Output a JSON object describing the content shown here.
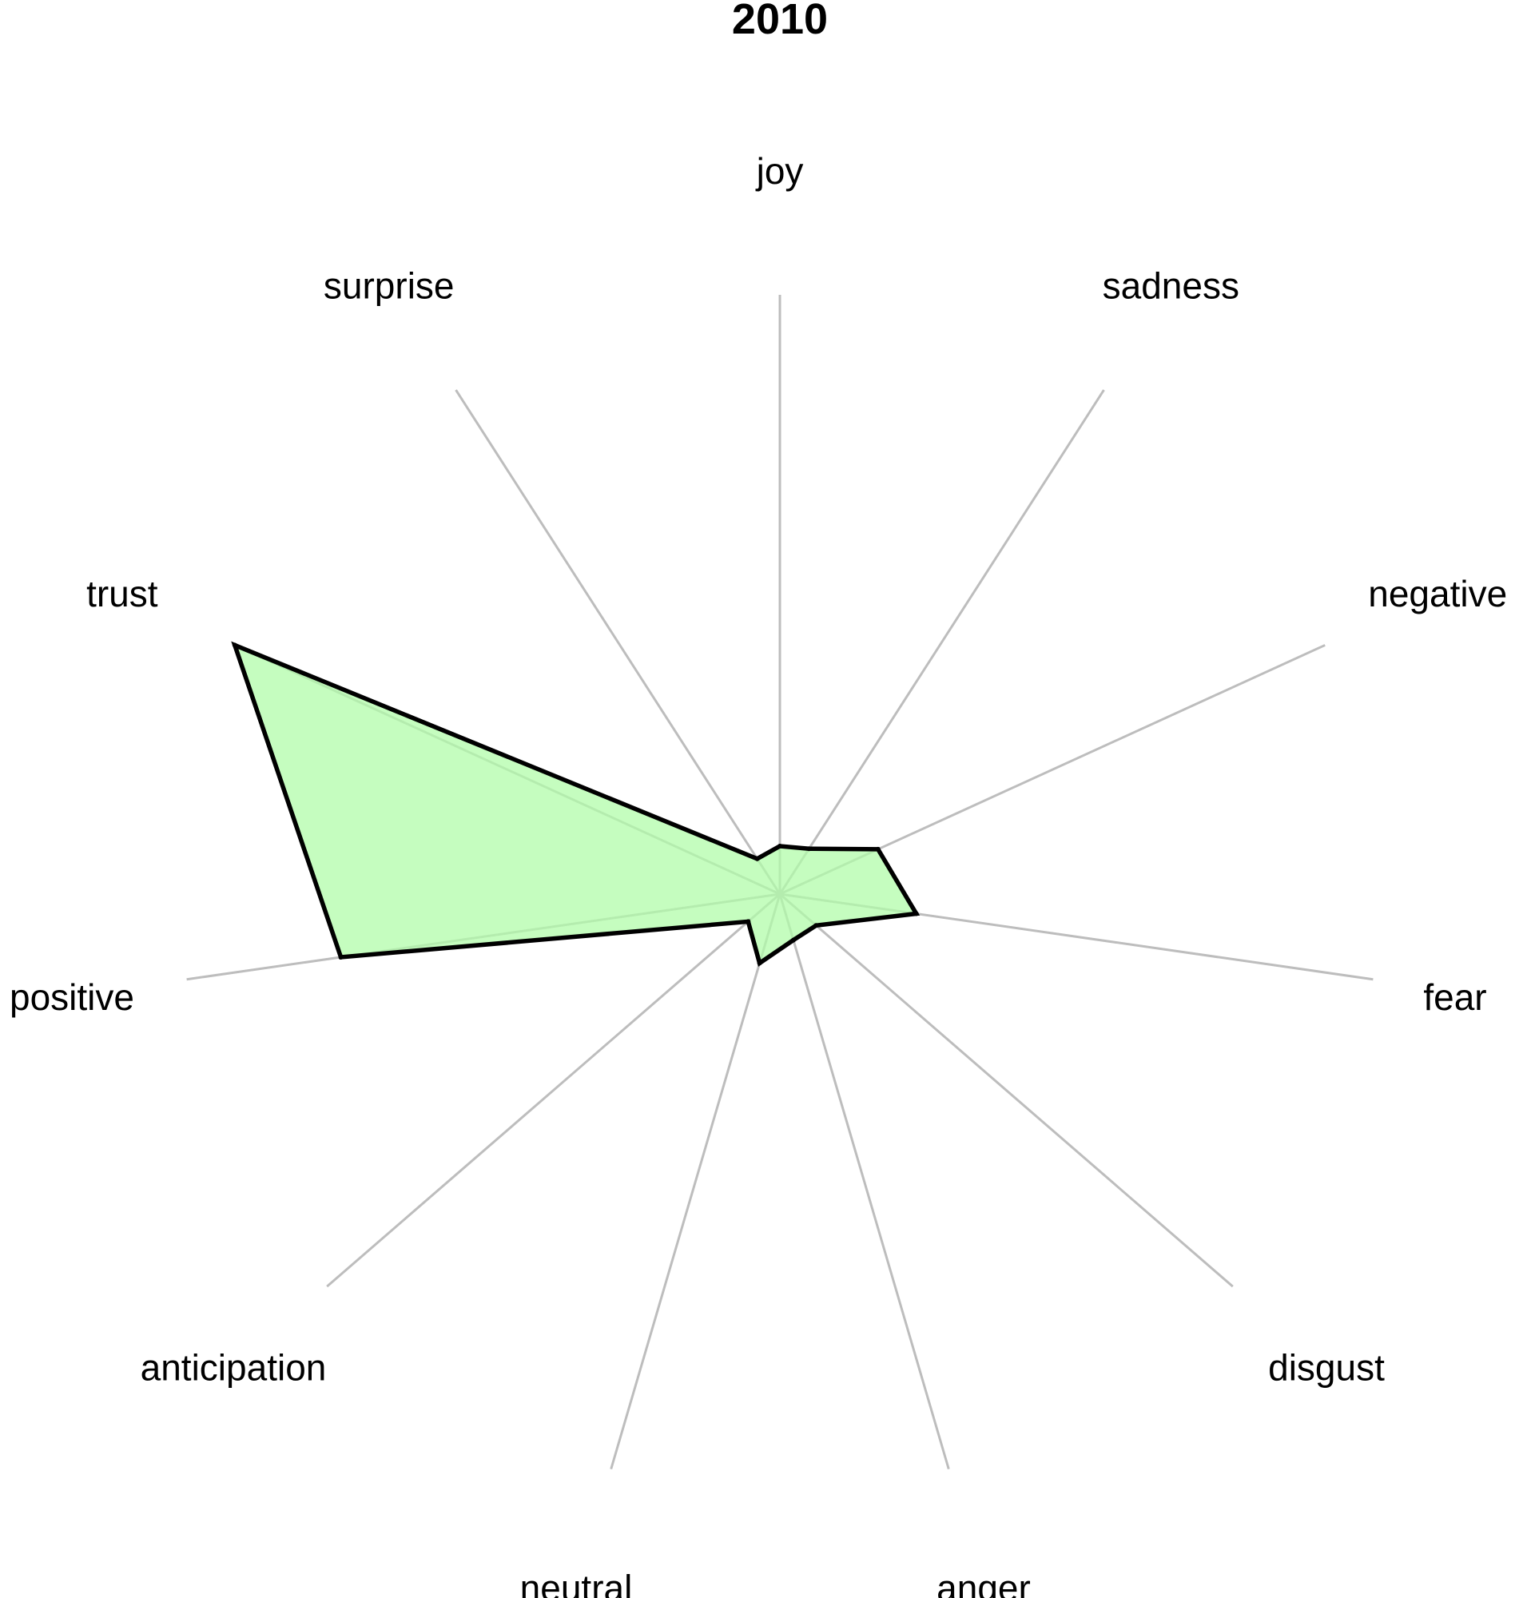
{
  "chart_data": {
    "type": "radar",
    "title": "2010",
    "categories": [
      "joy",
      "sadness",
      "negative",
      "fear",
      "disgust",
      "anger",
      "neutral",
      "anticipation",
      "positive",
      "trust",
      "surprise"
    ],
    "values": [
      0.08,
      0.09,
      0.18,
      0.23,
      0.08,
      0.08,
      0.12,
      0.07,
      0.74,
      1.0,
      0.07
    ],
    "rmax": 1.0,
    "fill_color": "#b2fcaa",
    "line_color": "#000000",
    "spoke_color": "#bdbdbd"
  }
}
